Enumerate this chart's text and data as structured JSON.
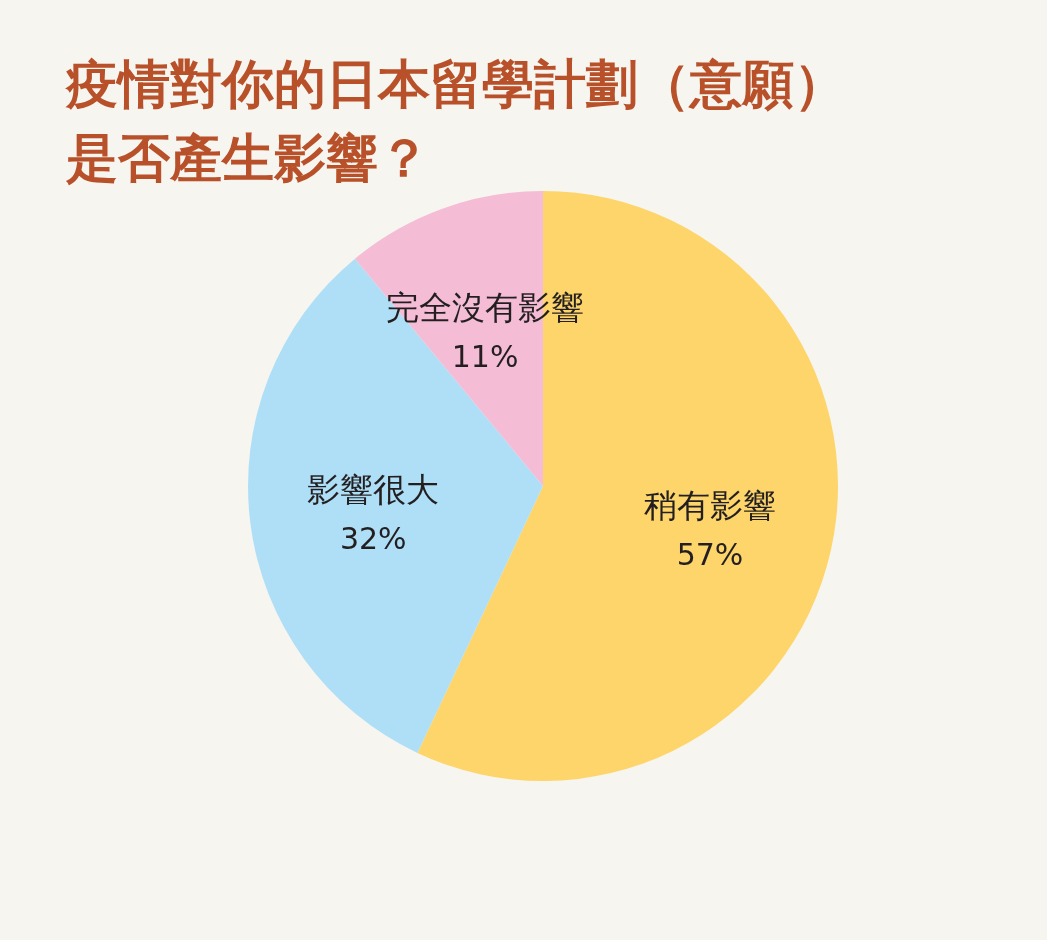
{
  "chart_data": {
    "type": "pie",
    "title": "疫情對你的日本留學計劃（意願）是否產生影響？",
    "categories": [
      "稍有影響",
      "影響很大",
      "完全沒有影響"
    ],
    "values": [
      57,
      32,
      11
    ],
    "colors": [
      "#fdd56b",
      "#aedff7",
      "#f5bcd6"
    ],
    "value_labels": [
      "57%",
      "32%",
      "11%"
    ]
  }
}
